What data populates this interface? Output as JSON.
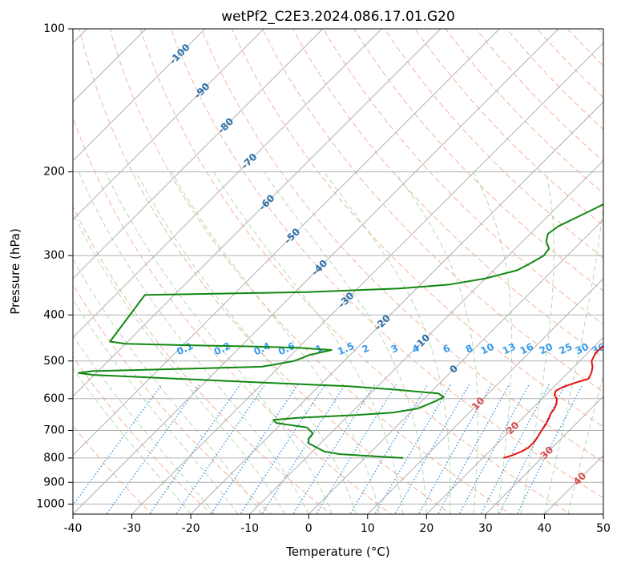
{
  "chart_data": {
    "type": "skew-t",
    "title": "wetPf2_C2E3.2024.086.17.01.G20",
    "xlabel": "Temperature (°C)",
    "ylabel": "Pressure (hPa)",
    "xlim": [
      -40,
      50
    ],
    "ylim": [
      1050,
      100
    ],
    "x_ticks": [
      -40,
      -30,
      -20,
      -10,
      0,
      10,
      20,
      30,
      40,
      50
    ],
    "y_ticks": [
      100,
      200,
      300,
      400,
      500,
      600,
      700,
      800,
      900,
      1000
    ],
    "colors": {
      "temperature": "#e8110f",
      "dewpoint": "#118811",
      "isotherms": "#b0b0b0",
      "dry_adiabats": "#f0a080",
      "moist_adiabats": "#99cc99",
      "mixing_ratio": "#2288dd",
      "mixing_label": "#3399ee",
      "upper_isotherm_label": "#2a6ea8",
      "lower_isotherm_label": "#d94c4c"
    },
    "upper_isotherm_labels": [
      {
        "text": "-100",
        "t": -100,
        "p": 113
      },
      {
        "text": "-90",
        "t": -90,
        "p": 135
      },
      {
        "text": "-80",
        "t": -80,
        "p": 160
      },
      {
        "text": "-70",
        "t": -70,
        "p": 190
      },
      {
        "text": "-60",
        "t": -60,
        "p": 232
      },
      {
        "text": "-50",
        "t": -50,
        "p": 273
      },
      {
        "text": "-40",
        "t": -40,
        "p": 318
      },
      {
        "text": "-30",
        "t": -30,
        "p": 372
      },
      {
        "text": "-20",
        "t": -20,
        "p": 415
      },
      {
        "text": "-10",
        "t": -10,
        "p": 456
      },
      {
        "text": "0",
        "t": 0,
        "p": 520
      }
    ],
    "lower_isotherm_labels": [
      {
        "text": "10",
        "t": 10,
        "p": 615
      },
      {
        "text": "20",
        "t": 20,
        "p": 692
      },
      {
        "text": "30",
        "t": 30,
        "p": 780
      },
      {
        "text": "40",
        "t": 40,
        "p": 885
      }
    ],
    "mixing_ratio_labels": [
      "0.1",
      "0.2",
      "0.4",
      "0.6",
      "1",
      "1.5",
      "2",
      "3",
      "4",
      "6",
      "8",
      "10",
      "13",
      "16",
      "20",
      "25",
      "30",
      "36"
    ],
    "mixing_ratio_label_p": 478,
    "temperature_profile": [
      {
        "p": 800,
        "t": 23.5
      },
      {
        "p": 790,
        "t": 24.5
      },
      {
        "p": 775,
        "t": 25.5
      },
      {
        "p": 760,
        "t": 26.0
      },
      {
        "p": 740,
        "t": 26.0
      },
      {
        "p": 720,
        "t": 25.7
      },
      {
        "p": 700,
        "t": 25.3
      },
      {
        "p": 680,
        "t": 25.0
      },
      {
        "p": 660,
        "t": 24.5
      },
      {
        "p": 645,
        "t": 24.0
      },
      {
        "p": 630,
        "t": 23.8
      },
      {
        "p": 615,
        "t": 23.3
      },
      {
        "p": 600,
        "t": 22.5
      },
      {
        "p": 590,
        "t": 21.5
      },
      {
        "p": 578,
        "t": 21.0
      },
      {
        "p": 568,
        "t": 21.5
      },
      {
        "p": 555,
        "t": 23.0
      },
      {
        "p": 545,
        "t": 24.5
      },
      {
        "p": 530,
        "t": 24.0
      },
      {
        "p": 515,
        "t": 23.2
      },
      {
        "p": 500,
        "t": 22.0
      },
      {
        "p": 480,
        "t": 21.3
      },
      {
        "p": 460,
        "t": 21.5
      },
      {
        "p": 445,
        "t": 22.0
      },
      {
        "p": 430,
        "t": 22.0
      },
      {
        "p": 415,
        "t": 21.5
      },
      {
        "p": 400,
        "t": 20.5
      },
      {
        "p": 385,
        "t": 19.5
      },
      {
        "p": 370,
        "t": 19.2
      },
      {
        "p": 355,
        "t": 18.0
      },
      {
        "p": 340,
        "t": 16.5
      },
      {
        "p": 320,
        "t": 14.5
      },
      {
        "p": 300,
        "t": 12.5
      },
      {
        "p": 280,
        "t": 11.3
      },
      {
        "p": 260,
        "t": 10.0
      },
      {
        "p": 240,
        "t": 8.3
      },
      {
        "p": 220,
        "t": 6.5
      },
      {
        "p": 200,
        "t": 4.5
      },
      {
        "p": 185,
        "t": 3.5
      },
      {
        "p": 170,
        "t": 2.5
      },
      {
        "p": 155,
        "t": 1.7
      },
      {
        "p": 145,
        "t": 1.5
      },
      {
        "p": 135,
        "t": 2.0
      },
      {
        "p": 128,
        "t": 2.7
      },
      {
        "p": 120,
        "t": 3.0
      },
      {
        "p": 112,
        "t": 2.5
      },
      {
        "p": 106,
        "t": 1.5
      },
      {
        "p": 100,
        "t": 0.8
      }
    ],
    "dewpoint_profile": [
      {
        "p": 800,
        "t": 6.5
      },
      {
        "p": 795,
        "t": 2.5
      },
      {
        "p": 790,
        "t": -1.0
      },
      {
        "p": 785,
        "t": -5.0
      },
      {
        "p": 775,
        "t": -8.0
      },
      {
        "p": 760,
        "t": -10.0
      },
      {
        "p": 745,
        "t": -12.0
      },
      {
        "p": 730,
        "t": -12.8
      },
      {
        "p": 710,
        "t": -13.0
      },
      {
        "p": 690,
        "t": -15.0
      },
      {
        "p": 675,
        "t": -21.0
      },
      {
        "p": 665,
        "t": -22.0
      },
      {
        "p": 658,
        "t": -18.0
      },
      {
        "p": 650,
        "t": -9.0
      },
      {
        "p": 642,
        "t": -3.0
      },
      {
        "p": 630,
        "t": 0.5
      },
      {
        "p": 618,
        "t": 1.5
      },
      {
        "p": 605,
        "t": 2.5
      },
      {
        "p": 595,
        "t": 3.0
      },
      {
        "p": 585,
        "t": 1.5
      },
      {
        "p": 575,
        "t": -6.0
      },
      {
        "p": 565,
        "t": -15.0
      },
      {
        "p": 555,
        "t": -30.0
      },
      {
        "p": 545,
        "t": -45.0
      },
      {
        "p": 535,
        "t": -60.0
      },
      {
        "p": 530,
        "t": -63.0
      },
      {
        "p": 525,
        "t": -61.0
      },
      {
        "p": 519,
        "t": -45.0
      },
      {
        "p": 514,
        "t": -33.0
      },
      {
        "p": 508,
        "t": -31.0
      },
      {
        "p": 500,
        "t": -28.5
      },
      {
        "p": 492,
        "t": -27.5
      },
      {
        "p": 486,
        "t": -27.0
      },
      {
        "p": 480,
        "t": -25.5
      },
      {
        "p": 474,
        "t": -24.0
      },
      {
        "p": 469,
        "t": -30.0
      },
      {
        "p": 466,
        "t": -38.0
      },
      {
        "p": 463,
        "t": -50.0
      },
      {
        "p": 460,
        "t": -60.0
      },
      {
        "p": 455,
        "t": -63.0
      },
      {
        "p": 363,
        "t": -65.0
      },
      {
        "p": 358,
        "t": -38.0
      },
      {
        "p": 352,
        "t": -23.0
      },
      {
        "p": 345,
        "t": -15.0
      },
      {
        "p": 335,
        "t": -10.0
      },
      {
        "p": 322,
        "t": -6.0
      },
      {
        "p": 312,
        "t": -5.0
      },
      {
        "p": 300,
        "t": -4.0
      },
      {
        "p": 290,
        "t": -4.3
      },
      {
        "p": 280,
        "t": -6.0
      },
      {
        "p": 270,
        "t": -7.0
      },
      {
        "p": 260,
        "t": -6.5
      },
      {
        "p": 250,
        "t": -5.0
      },
      {
        "p": 240,
        "t": -3.5
      },
      {
        "p": 230,
        "t": -2.0
      },
      {
        "p": 220,
        "t": -0.5
      },
      {
        "p": 210,
        "t": 0.5
      },
      {
        "p": 200,
        "t": 1.0
      },
      {
        "p": 190,
        "t": 1.8
      },
      {
        "p": 180,
        "t": 1.5
      },
      {
        "p": 172,
        "t": 1.0
      },
      {
        "p": 165,
        "t": 1.0
      },
      {
        "p": 158,
        "t": 0.5
      },
      {
        "p": 150,
        "t": -1.0
      },
      {
        "p": 142,
        "t": -2.5
      },
      {
        "p": 135,
        "t": -3.5
      },
      {
        "p": 128,
        "t": -3.5
      },
      {
        "p": 122,
        "t": -2.5
      },
      {
        "p": 117,
        "t": -1.0
      },
      {
        "p": 112,
        "t": -0.5
      },
      {
        "p": 106,
        "t": -0.5
      },
      {
        "p": 100,
        "t": -0.3
      }
    ]
  }
}
